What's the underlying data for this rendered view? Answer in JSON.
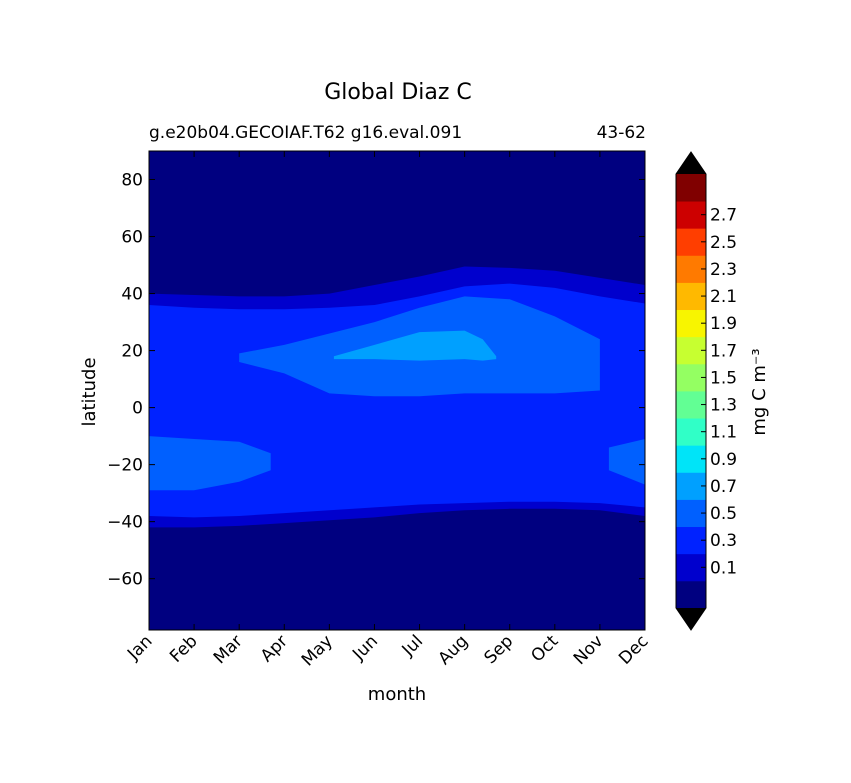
{
  "chart_data": {
    "type": "heatmap",
    "title": "Global Diaz C",
    "subtitle_left": "g.e20b04.GECOIAF.T62 g16.eval.091",
    "subtitle_right": "43-62",
    "xlabel": "month",
    "ylabel": "latitude",
    "x_ticks": [
      "Jan",
      "Feb",
      "Mar",
      "Apr",
      "May",
      "Jun",
      "Jul",
      "Aug",
      "Sep",
      "Oct",
      "Nov",
      "Dec"
    ],
    "xlim": [
      0,
      11
    ],
    "ylim": [
      -78,
      90
    ],
    "y_ticks": [
      80,
      60,
      40,
      20,
      0,
      -20,
      -40,
      -60
    ],
    "y_tick_labels": [
      "80",
      "60",
      "40",
      "20",
      "0",
      "−20",
      "−40",
      "−60"
    ],
    "colorbar": {
      "label": "mg C m⁻³",
      "extend": "both",
      "levels": [
        0,
        0.2,
        0.4,
        0.6,
        0.8,
        1.0,
        1.2,
        1.4,
        1.6,
        1.8,
        2.0,
        2.2,
        2.4,
        2.6,
        2.8
      ],
      "tick_labels": [
        "0.1",
        "0.3",
        "0.5",
        "0.7",
        "0.9",
        "1.1",
        "1.3",
        "1.5",
        "1.7",
        "1.9",
        "2.1",
        "2.3",
        "2.5",
        "2.7"
      ],
      "colors": [
        "#000080",
        "#0000cd",
        "#0022ff",
        "#0060ff",
        "#00a0ff",
        "#00e4f8",
        "#30ffc7",
        "#62ff94",
        "#94ff62",
        "#c7ff30",
        "#f8f500",
        "#ffb900",
        "#ff7a00",
        "#ff3e00",
        "#cd0000",
        "#800000"
      ],
      "under_color": "#000000",
      "over_color": "#000000"
    },
    "contour_regions": [
      {
        "level": "0.2-0.4",
        "color": "#0000cd",
        "upper_edge": [
          [
            0,
            40
          ],
          [
            1,
            39.5
          ],
          [
            2,
            39
          ],
          [
            3,
            39
          ],
          [
            4,
            40
          ],
          [
            5,
            43
          ],
          [
            6,
            46
          ],
          [
            7,
            49.5
          ],
          [
            8,
            49
          ],
          [
            9,
            48
          ],
          [
            10,
            45.5
          ],
          [
            11,
            43
          ]
        ],
        "lower_edge": [
          [
            0,
            -42
          ],
          [
            1,
            -42
          ],
          [
            2,
            -41.5
          ],
          [
            3,
            -40.5
          ],
          [
            4,
            -39.5
          ],
          [
            5,
            -38.5
          ],
          [
            6,
            -37
          ],
          [
            7,
            -36
          ],
          [
            8,
            -35.5
          ],
          [
            9,
            -35.5
          ],
          [
            10,
            -36
          ],
          [
            11,
            -38
          ]
        ]
      },
      {
        "level": "0.4-0.6",
        "color": "#0022ff",
        "upper_edge": [
          [
            0,
            36
          ],
          [
            1,
            35
          ],
          [
            2,
            34.5
          ],
          [
            3,
            34.5
          ],
          [
            4,
            35
          ],
          [
            5,
            36
          ],
          [
            6,
            39
          ],
          [
            7,
            42.5
          ],
          [
            8,
            43.5
          ],
          [
            9,
            42
          ],
          [
            10,
            39
          ],
          [
            11,
            36.5
          ]
        ],
        "lower_edge": [
          [
            0,
            -38
          ],
          [
            1,
            -38.5
          ],
          [
            2,
            -38
          ],
          [
            3,
            -37
          ],
          [
            4,
            -36
          ],
          [
            5,
            -35
          ],
          [
            6,
            -34
          ],
          [
            7,
            -33.5
          ],
          [
            8,
            -33
          ],
          [
            9,
            -33
          ],
          [
            10,
            -33.5
          ],
          [
            11,
            -35
          ]
        ]
      },
      {
        "level": "0.6-0.8",
        "color": "#0060ff",
        "upper_edge": [
          [
            2,
            19
          ],
          [
            3,
            22
          ],
          [
            4,
            26
          ],
          [
            5,
            30
          ],
          [
            6,
            35
          ],
          [
            7,
            39
          ],
          [
            8,
            38
          ],
          [
            9,
            32
          ],
          [
            10,
            24
          ]
        ],
        "lower_edge": [
          [
            2,
            16
          ],
          [
            3,
            12
          ],
          [
            4,
            5
          ],
          [
            5,
            4
          ],
          [
            6,
            4
          ],
          [
            7,
            5
          ],
          [
            8,
            5
          ],
          [
            9,
            5
          ],
          [
            10,
            6
          ]
        ]
      },
      {
        "level": "0.6-0.8 (south, Jan-Mar)",
        "color": "#0060ff",
        "upper_edge": [
          [
            0,
            -10
          ],
          [
            1,
            -11
          ],
          [
            2,
            -12
          ],
          [
            2.7,
            -16
          ]
        ],
        "lower_edge": [
          [
            0,
            -29
          ],
          [
            1,
            -29
          ],
          [
            2,
            -26
          ],
          [
            2.7,
            -22
          ]
        ]
      },
      {
        "level": "0.6-0.8 (south, Nov-Dec)",
        "color": "#0060ff",
        "upper_edge": [
          [
            10.2,
            -14
          ],
          [
            11,
            -11
          ]
        ],
        "lower_edge": [
          [
            10.2,
            -22
          ],
          [
            11,
            -27
          ]
        ]
      },
      {
        "level": "0.8-1.0",
        "color": "#00a0ff",
        "upper_edge": [
          [
            4.1,
            18
          ],
          [
            5,
            22
          ],
          [
            6,
            26.5
          ],
          [
            7,
            27
          ],
          [
            7.4,
            24
          ],
          [
            7.7,
            18
          ]
        ],
        "lower_edge": [
          [
            4.1,
            17
          ],
          [
            5,
            17
          ],
          [
            6,
            16.5
          ],
          [
            7,
            17
          ],
          [
            7.4,
            16.5
          ],
          [
            7.7,
            17
          ]
        ]
      }
    ]
  }
}
